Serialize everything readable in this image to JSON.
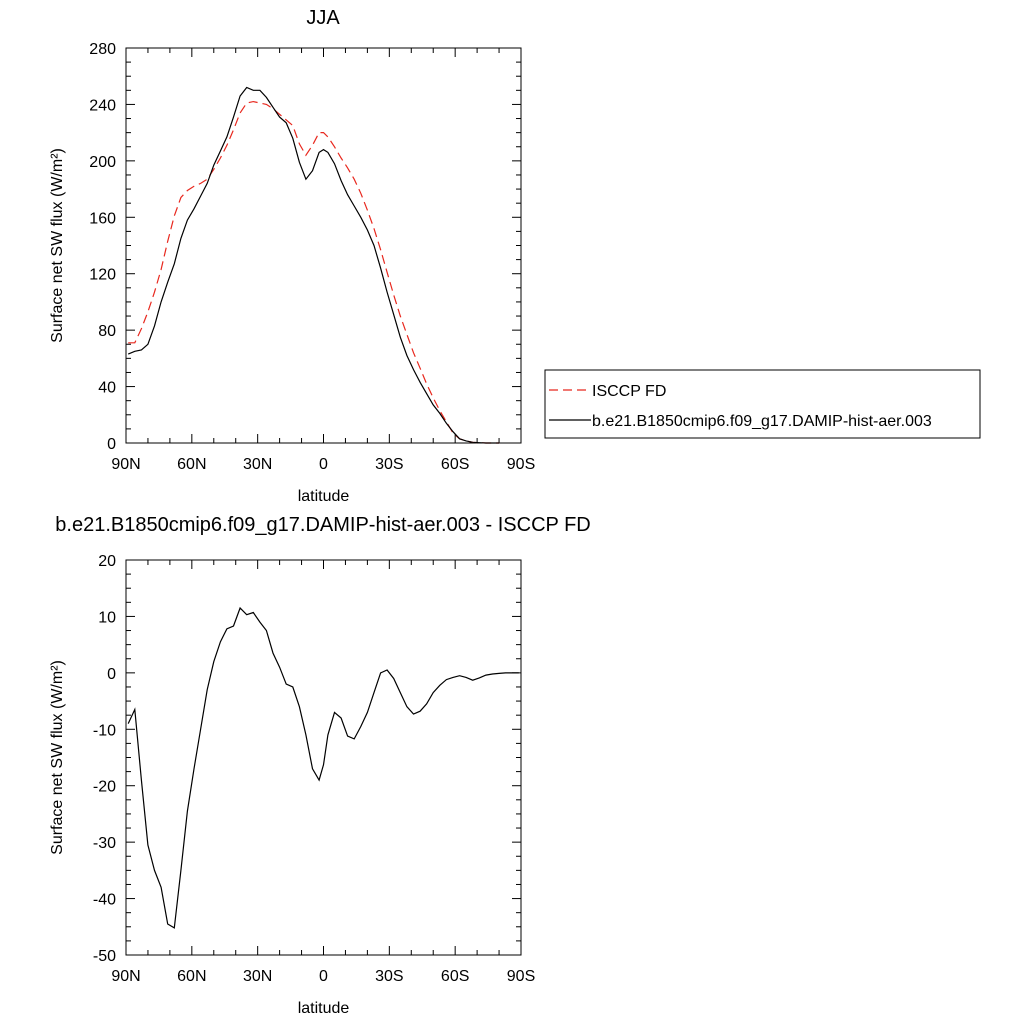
{
  "chart_data": [
    {
      "type": "line",
      "title": "JJA",
      "xlabel": "latitude",
      "ylabel": "Surface net SW flux (W/m²)",
      "xlim": [
        90,
        -90
      ],
      "ylim": [
        0,
        280
      ],
      "x_ticks": [
        90,
        60,
        30,
        0,
        -30,
        -60,
        -90
      ],
      "x_tick_labels": [
        "90N",
        "60N",
        "30N",
        "0",
        "30S",
        "60S",
        "90S"
      ],
      "y_ticks": [
        0,
        40,
        80,
        120,
        160,
        200,
        240,
        280
      ],
      "y_tick_labels": [
        "0",
        "40",
        "80",
        "120",
        "160",
        "200",
        "240",
        "280"
      ],
      "grid": false,
      "legend_position": "right",
      "series": [
        {
          "name": "ISCCP FD",
          "color": "#e8281e",
          "dash": "dashed",
          "x": [
            89,
            86,
            83,
            80,
            77,
            74,
            71,
            68,
            65,
            62,
            59,
            56,
            53,
            50,
            47,
            44,
            41,
            38,
            35,
            32,
            29,
            26,
            23,
            20,
            17,
            14,
            11,
            8,
            5,
            2,
            0,
            -2,
            -5,
            -8,
            -11,
            -14,
            -17,
            -20,
            -23,
            -26,
            -29,
            -32,
            -35,
            -38,
            -41,
            -44,
            -47,
            -50,
            -53,
            -56,
            -59,
            -62,
            -65,
            -68,
            -71,
            -74,
            -77,
            -80
          ],
          "y": [
            71,
            71,
            81,
            93,
            107,
            123,
            143,
            161,
            174,
            179,
            182,
            184,
            187,
            194,
            202,
            211,
            222,
            234,
            241,
            242,
            241,
            240,
            237,
            233,
            229,
            225,
            212,
            204,
            211,
            220,
            220,
            217,
            210,
            202,
            195,
            187,
            177,
            165,
            152,
            137,
            121,
            105,
            90,
            77,
            64,
            53,
            42,
            32,
            23,
            15,
            7,
            3,
            1.5,
            0.5,
            0.2,
            0,
            0,
            0
          ]
        },
        {
          "name": "b.e21.B1850cmip6.f09_g17.DAMIP-hist-aer.003",
          "color": "#000000",
          "dash": "solid",
          "x": [
            89,
            86,
            83,
            80,
            77,
            74,
            71,
            68,
            65,
            62,
            59,
            56,
            53,
            50,
            47,
            44,
            41,
            38,
            35,
            32,
            29,
            26,
            23,
            20,
            17,
            14,
            11,
            8,
            5,
            2,
            0,
            -2,
            -5,
            -8,
            -11,
            -14,
            -17,
            -20,
            -23,
            -26,
            -29,
            -32,
            -35,
            -38,
            -41,
            -44,
            -47,
            -50,
            -53,
            -56,
            -59,
            -62,
            -65,
            -68,
            -71,
            -74,
            -77,
            -80
          ],
          "y": [
            63,
            65,
            66,
            70,
            83,
            100,
            114,
            127,
            145,
            158,
            166,
            175,
            184,
            197,
            207,
            217,
            231,
            246,
            252,
            250,
            250,
            245,
            238,
            231,
            227,
            216,
            199,
            187,
            193,
            206,
            208,
            206,
            198,
            186,
            176,
            168,
            160,
            151,
            140,
            124,
            107,
            91,
            75,
            62,
            52,
            43,
            35,
            27,
            21,
            14,
            8,
            3,
            1.5,
            0.5,
            0.2,
            0,
            0,
            0
          ]
        }
      ]
    },
    {
      "type": "line",
      "title": "b.e21.B1850cmip6.f09_g17.DAMIP-hist-aer.003 - ISCCP FD",
      "xlabel": "latitude",
      "ylabel": "Surface net SW flux (W/m²)",
      "xlim": [
        90,
        -90
      ],
      "ylim": [
        -50,
        20
      ],
      "x_ticks": [
        90,
        60,
        30,
        0,
        -30,
        -60,
        -90
      ],
      "x_tick_labels": [
        "90N",
        "60N",
        "30N",
        "0",
        "30S",
        "60S",
        "90S"
      ],
      "y_ticks": [
        -50,
        -40,
        -30,
        -20,
        -10,
        0,
        10,
        20
      ],
      "y_tick_labels": [
        "-50",
        "-40",
        "-30",
        "-20",
        "-10",
        "0",
        "10",
        "20"
      ],
      "grid": false,
      "series": [
        {
          "color": "#000000",
          "dash": "solid",
          "x": [
            89,
            86,
            83,
            80,
            77,
            74,
            71,
            68,
            65,
            62,
            59,
            56,
            53,
            50,
            47,
            44,
            41,
            38,
            35,
            32,
            29,
            26,
            23,
            20,
            17,
            14,
            11,
            8,
            5,
            2,
            0,
            -2,
            -5,
            -8,
            -11,
            -14,
            -17,
            -20,
            -23,
            -26,
            -29,
            -32,
            -35,
            -38,
            -41,
            -44,
            -47,
            -50,
            -53,
            -56,
            -59,
            -62,
            -65,
            -68,
            -71,
            -74,
            -77,
            -80,
            -83,
            -86,
            -89
          ],
          "y": [
            -9,
            -6.5,
            -19,
            -30.5,
            -35,
            -38,
            -44.5,
            -45.2,
            -35,
            -24.5,
            -17,
            -10,
            -3,
            2,
            5.5,
            7.8,
            8.3,
            11.5,
            10.3,
            10.7,
            9,
            7.5,
            3.5,
            1,
            -2,
            -2.5,
            -6,
            -11,
            -17,
            -19,
            -16.3,
            -11,
            -7,
            -8,
            -11.2,
            -11.7,
            -9.5,
            -7,
            -3.5,
            0,
            0.5,
            -1,
            -3.5,
            -6,
            -7.3,
            -6.8,
            -5.5,
            -3.5,
            -2.2,
            -1.2,
            -0.8,
            -0.5,
            -0.8,
            -1.3,
            -0.9,
            -0.4,
            -0.2,
            -0.1,
            0,
            0,
            0
          ]
        }
      ]
    }
  ]
}
